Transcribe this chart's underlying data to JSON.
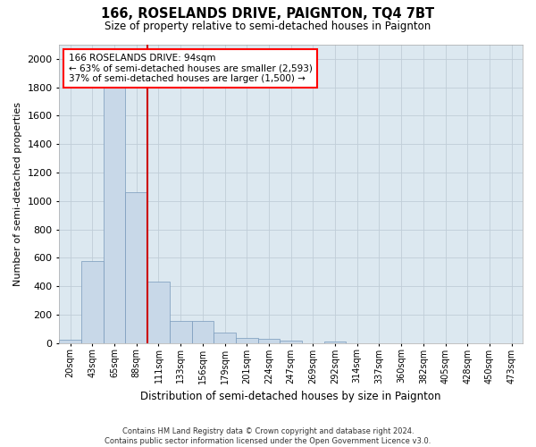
{
  "title": "166, ROSELANDS DRIVE, PAIGNTON, TQ4 7BT",
  "subtitle": "Size of property relative to semi-detached houses in Paignton",
  "xlabel": "Distribution of semi-detached houses by size in Paignton",
  "ylabel": "Number of semi-detached properties",
  "footer_line1": "Contains HM Land Registry data © Crown copyright and database right 2024.",
  "footer_line2": "Contains public sector information licensed under the Open Government Licence v3.0.",
  "annotation_line1": "166 ROSELANDS DRIVE: 94sqm",
  "annotation_line2": "← 63% of semi-detached houses are smaller (2,593)",
  "annotation_line3": "37% of semi-detached houses are larger (1,500) →",
  "bar_color": "#c8d8e8",
  "bar_edge_color": "#7799bb",
  "grid_color": "#c0cdd8",
  "vline_color": "#cc0000",
  "categories": [
    "20sqm",
    "43sqm",
    "65sqm",
    "88sqm",
    "111sqm",
    "133sqm",
    "156sqm",
    "179sqm",
    "201sqm",
    "224sqm",
    "247sqm",
    "269sqm",
    "292sqm",
    "314sqm",
    "337sqm",
    "360sqm",
    "382sqm",
    "405sqm",
    "428sqm",
    "450sqm",
    "473sqm"
  ],
  "values": [
    25,
    575,
    1880,
    1060,
    430,
    155,
    155,
    75,
    35,
    30,
    20,
    0,
    10,
    0,
    0,
    0,
    0,
    0,
    0,
    0,
    0
  ],
  "ylim": [
    0,
    2100
  ],
  "yticks": [
    0,
    200,
    400,
    600,
    800,
    1000,
    1200,
    1400,
    1600,
    1800,
    2000
  ],
  "vline_index": 3.5,
  "bar_width": 1.0,
  "background_color": "#ffffff",
  "plot_bg_color": "#dce8f0"
}
